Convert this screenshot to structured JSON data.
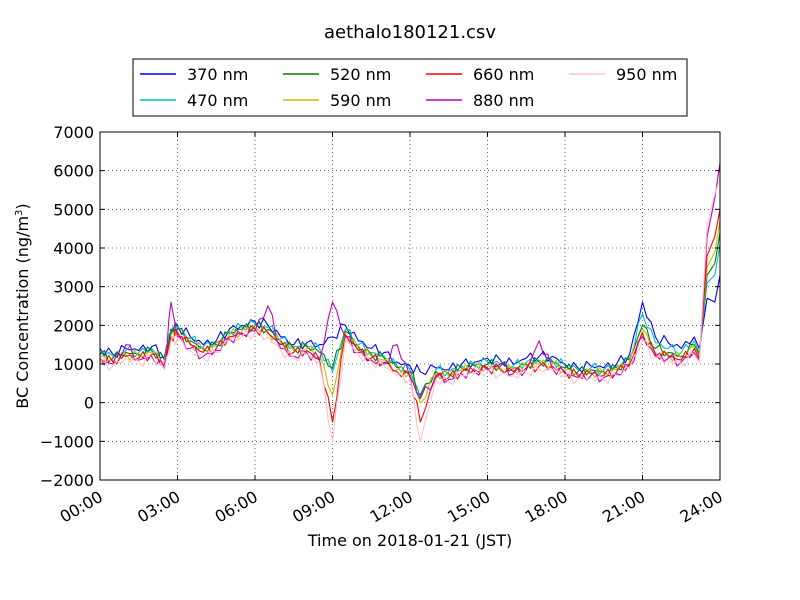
{
  "chart_data": {
    "type": "line",
    "title": "aethalo180121.csv",
    "xlabel": "Time on 2018-01-21 (JST)",
    "ylabel": "BC Concentration (ng/m",
    "ylabel_superscript": "3",
    "ylabel_suffix": ")",
    "xlim": [
      "00:00",
      "24:00"
    ],
    "ylim": [
      -2000,
      7000
    ],
    "x_ticks": [
      "00:00",
      "03:00",
      "06:00",
      "09:00",
      "12:00",
      "15:00",
      "18:00",
      "21:00",
      "24:00"
    ],
    "y_ticks": [
      "−2000",
      "−1000",
      "0",
      "1000",
      "2000",
      "3000",
      "4000",
      "5000",
      "6000",
      "7000"
    ],
    "grid": true,
    "legend_position": "top, above plot, 4 columns",
    "x_hours": [
      0,
      0.5,
      1,
      1.5,
      2,
      2.5,
      2.75,
      3,
      3.5,
      4,
      4.5,
      5,
      5.5,
      6,
      6.5,
      7,
      7.5,
      8,
      8.5,
      9,
      9.5,
      10,
      10.5,
      11,
      11.5,
      12,
      12.4,
      13,
      13.5,
      14,
      14.5,
      15,
      15.5,
      16,
      16.5,
      17,
      17.5,
      18,
      18.5,
      19,
      19.5,
      20,
      20.5,
      21,
      21.5,
      22,
      22.5,
      23,
      23.2,
      23.5,
      23.8,
      24
    ],
    "series": [
      {
        "name": "370 nm",
        "color": "#0000ff",
        "values": [
          1400,
          1250,
          1400,
          1350,
          1450,
          1200,
          1900,
          2000,
          1700,
          1500,
          1600,
          1900,
          2000,
          2100,
          2000,
          1700,
          1500,
          1550,
          1500,
          1700,
          2000,
          1600,
          1400,
          1300,
          1050,
          950,
          800,
          900,
          850,
          1000,
          1050,
          1150,
          1100,
          1000,
          1150,
          1200,
          1200,
          1000,
          900,
          950,
          900,
          1000,
          1250,
          2600,
          1700,
          1550,
          1400,
          1700,
          1400,
          2700,
          2600,
          3300
        ]
      },
      {
        "name": "470 nm",
        "color": "#00bfbf",
        "values": [
          1300,
          1200,
          1350,
          1300,
          1400,
          1150,
          1850,
          1950,
          1650,
          1450,
          1550,
          1850,
          1950,
          2050,
          1950,
          1650,
          1450,
          1500,
          1400,
          800,
          1900,
          1500,
          1300,
          1200,
          950,
          850,
          150,
          850,
          800,
          950,
          1000,
          1050,
          1000,
          950,
          1050,
          1100,
          1100,
          950,
          850,
          900,
          850,
          950,
          1150,
          2300,
          1550,
          1400,
          1300,
          1600,
          1300,
          3100,
          3300,
          4100
        ]
      },
      {
        "name": "520 nm",
        "color": "#008000",
        "values": [
          1250,
          1150,
          1300,
          1250,
          1350,
          1100,
          1800,
          1900,
          1600,
          1400,
          1500,
          1800,
          1900,
          2000,
          1900,
          1600,
          1400,
          1450,
          1300,
          900,
          1850,
          1450,
          1250,
          1150,
          900,
          800,
          200,
          800,
          750,
          900,
          950,
          1000,
          950,
          900,
          1000,
          1050,
          1050,
          900,
          800,
          850,
          800,
          900,
          1100,
          2000,
          1400,
          1300,
          1200,
          1500,
          1250,
          3300,
          3600,
          4400
        ]
      },
      {
        "name": "590 nm",
        "color": "#bfbf00",
        "values": [
          1200,
          1100,
          1250,
          1200,
          1300,
          1050,
          1750,
          1850,
          1550,
          1350,
          1450,
          1750,
          1850,
          1950,
          1850,
          1550,
          1350,
          1400,
          1200,
          200,
          1800,
          1400,
          1200,
          1100,
          850,
          750,
          0,
          750,
          700,
          850,
          900,
          950,
          900,
          850,
          950,
          1000,
          1000,
          850,
          750,
          800,
          750,
          850,
          1050,
          1900,
          1300,
          1250,
          1150,
          1450,
          1200,
          3500,
          3900,
          4700
        ]
      },
      {
        "name": "660 nm",
        "color": "#ff0000",
        "values": [
          1150,
          1050,
          1200,
          1150,
          1250,
          1000,
          1700,
          1800,
          1500,
          1300,
          1400,
          1700,
          1800,
          1900,
          1800,
          1500,
          1300,
          1350,
          1100,
          -500,
          1750,
          1350,
          1150,
          1050,
          800,
          700,
          -500,
          700,
          650,
          800,
          850,
          900,
          850,
          800,
          900,
          950,
          950,
          800,
          700,
          750,
          700,
          800,
          1000,
          1800,
          1250,
          1200,
          1100,
          1400,
          1150,
          3800,
          4300,
          5000
        ]
      },
      {
        "name": "880 nm",
        "color": "#bf00bf",
        "values": [
          1100,
          1000,
          1500,
          1100,
          1200,
          900,
          2600,
          1700,
          1400,
          1200,
          1350,
          1650,
          1750,
          1850,
          2500,
          1400,
          1200,
          1300,
          1100,
          2600,
          1700,
          1300,
          1100,
          1000,
          1500,
          650,
          100,
          650,
          600,
          750,
          800,
          850,
          1000,
          750,
          850,
          1600,
          900,
          750,
          650,
          700,
          650,
          750,
          950,
          1700,
          1200,
          1150,
          1050,
          1300,
          1100,
          4300,
          5300,
          6200
        ]
      },
      {
        "name": "950 nm",
        "color": "#ffc0cb",
        "values": [
          1050,
          950,
          1150,
          1050,
          1150,
          850,
          1600,
          1650,
          1350,
          1150,
          1300,
          1600,
          1700,
          1800,
          1700,
          1350,
          1150,
          1250,
          1000,
          -1000,
          1650,
          1250,
          1050,
          950,
          700,
          600,
          -1000,
          600,
          550,
          700,
          750,
          800,
          750,
          700,
          800,
          850,
          850,
          700,
          600,
          650,
          600,
          700,
          900,
          1600,
          1150,
          1100,
          1000,
          1250,
          1050,
          4600,
          5400,
          5800
        ]
      }
    ]
  }
}
